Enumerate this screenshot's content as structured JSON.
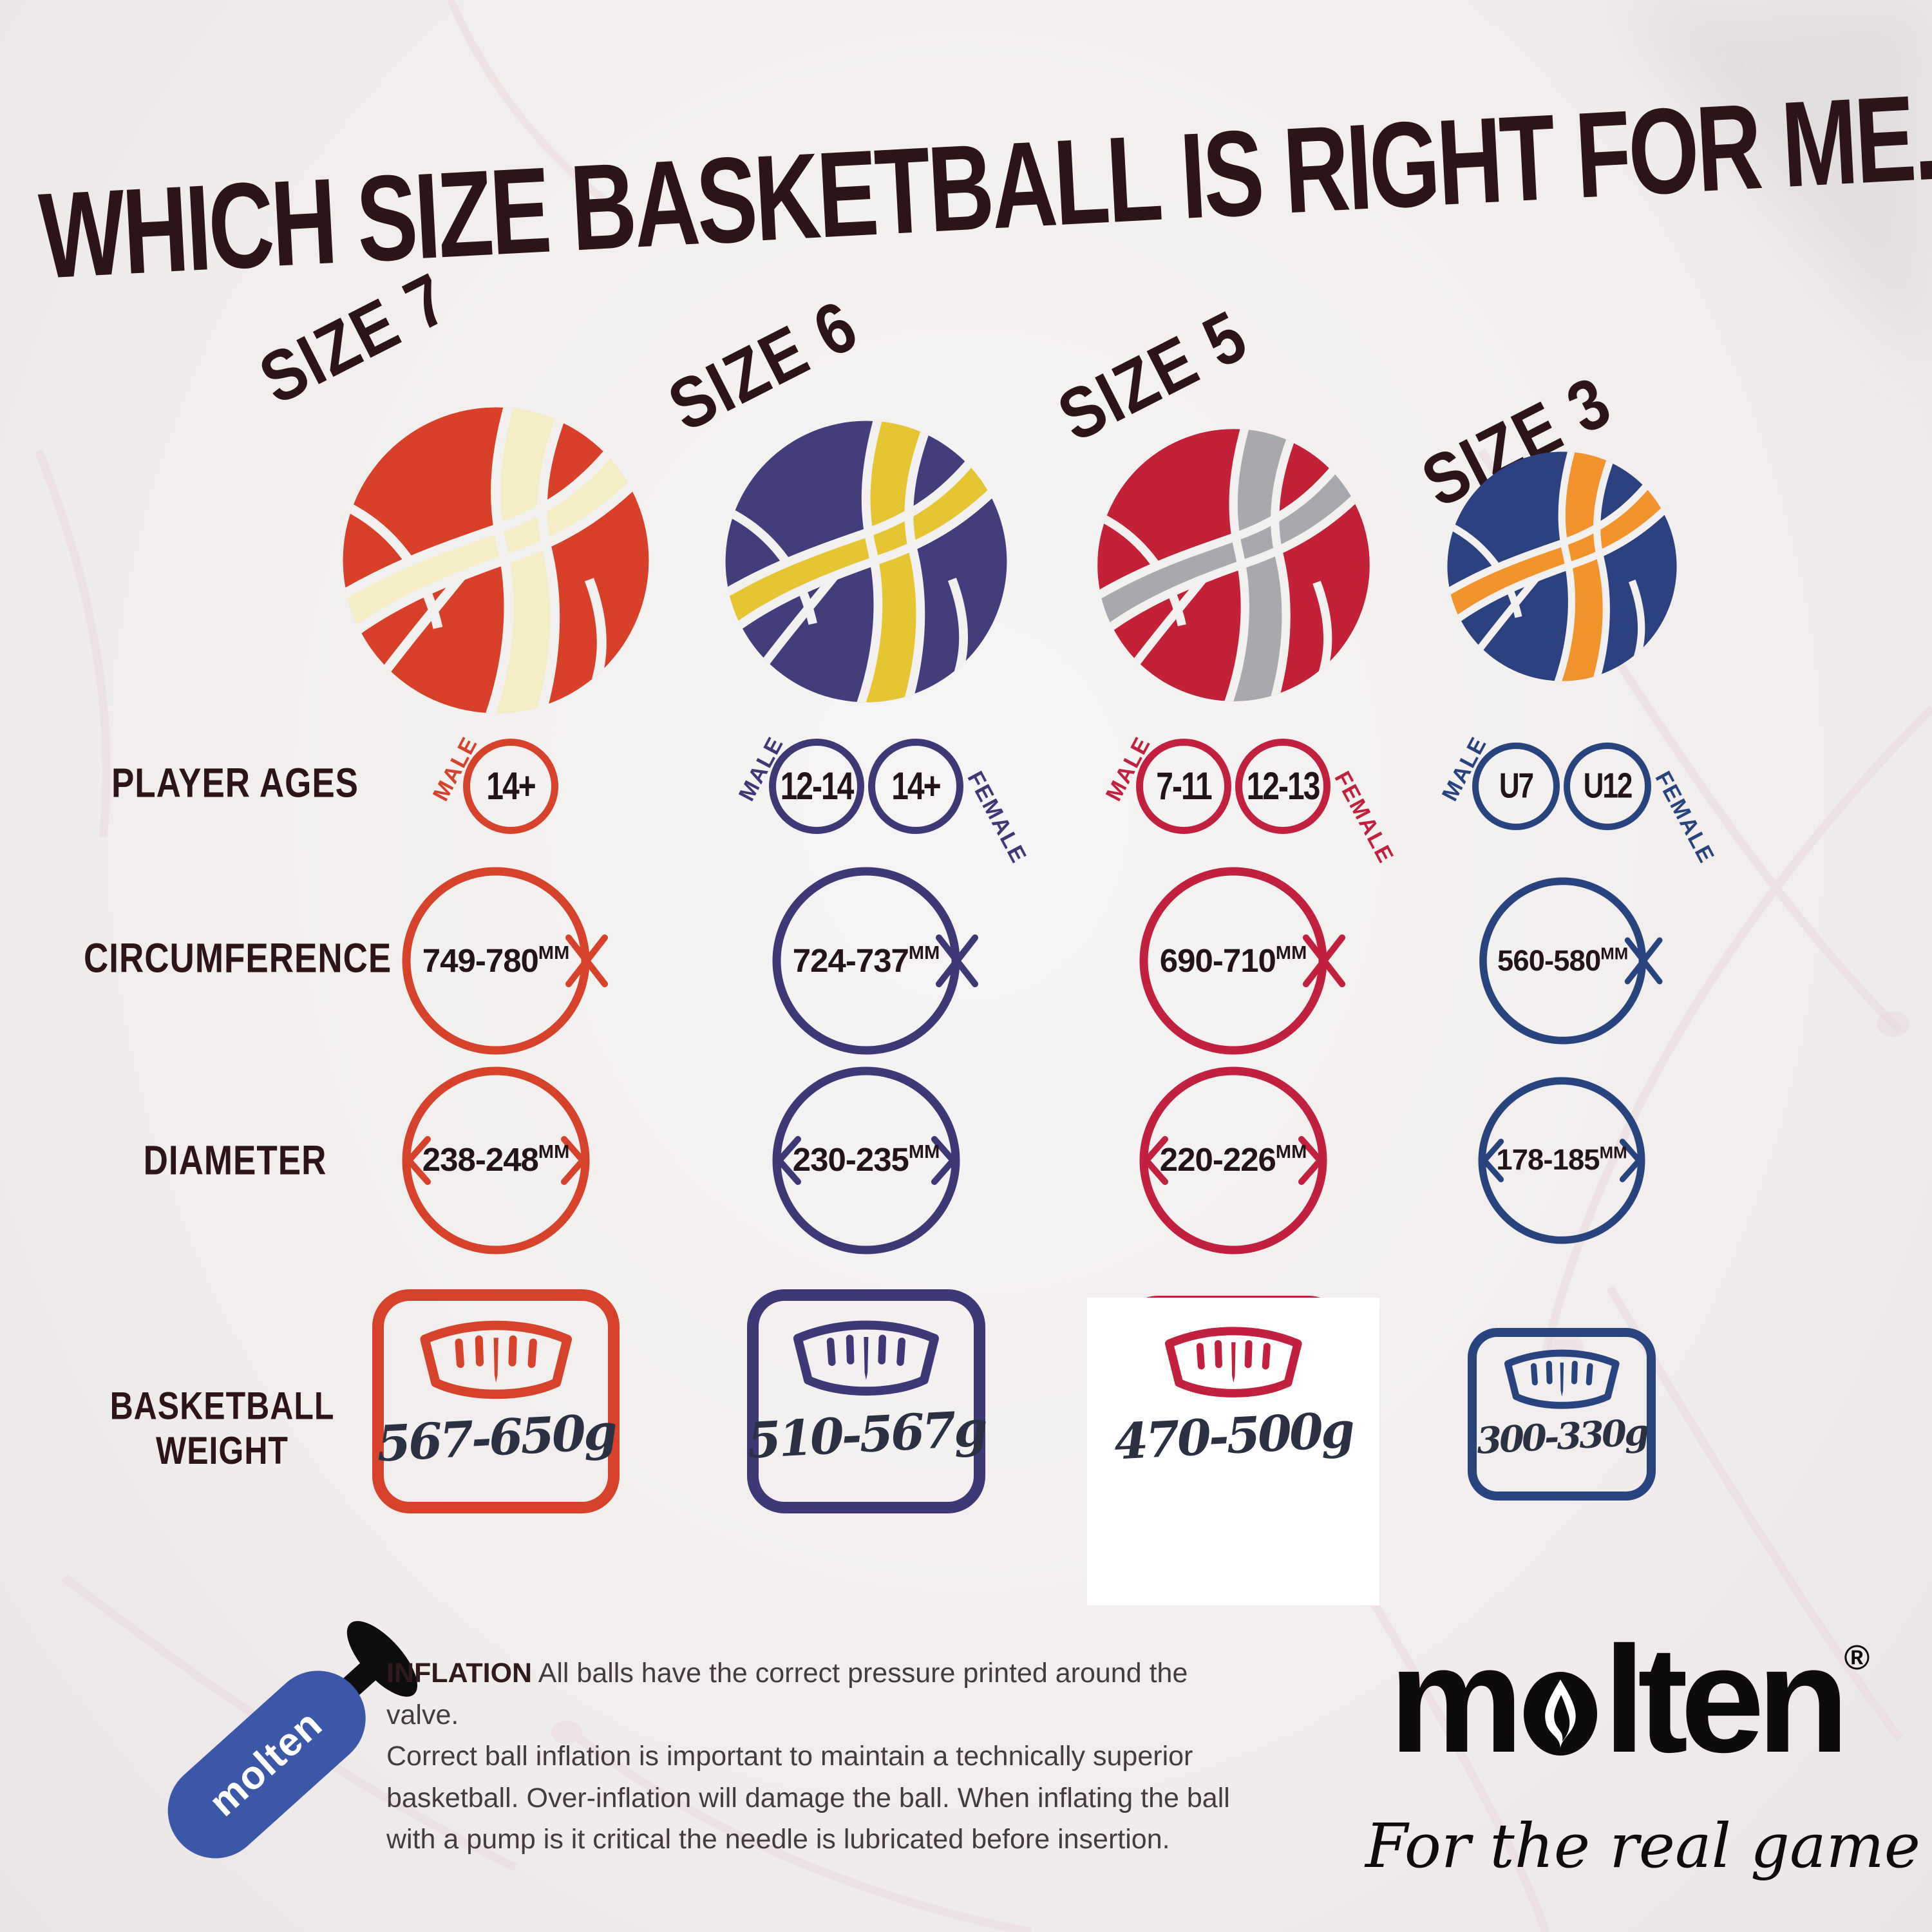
{
  "title": "WHICH SIZE BASKETBALL IS RIGHT FOR ME...",
  "row_labels": {
    "ages": "PLAYER AGES",
    "circumference": "CIRCUMFERENCE",
    "diameter": "DIAMETER",
    "weight": "BASKETBALL WEIGHT"
  },
  "units": {
    "mm": "MM"
  },
  "sizes": [
    {
      "label": "SIZE 7",
      "colors": {
        "base": "#d8402a",
        "accent": "#f6efc6",
        "ring": "#d6432a"
      },
      "ages": [
        {
          "gender": "MALE",
          "value": "14+"
        }
      ],
      "circumference": "749-780",
      "diameter": "238-248",
      "weight": "567-650g"
    },
    {
      "label": "SIZE 6",
      "colors": {
        "base": "#433d7b",
        "accent": "#e5c532",
        "ring": "#3f3877"
      },
      "ages": [
        {
          "gender": "MALE",
          "value": "12-14"
        },
        {
          "gender": "FEMALE",
          "value": "14+"
        }
      ],
      "circumference": "724-737",
      "diameter": "230-235",
      "weight": "510-567g"
    },
    {
      "label": "SIZE 5",
      "colors": {
        "base": "#c22138",
        "accent": "#a7a9ac",
        "ring": "#c1203f"
      },
      "ages": [
        {
          "gender": "MALE",
          "value": "7-11"
        },
        {
          "gender": "FEMALE",
          "value": "12-13"
        }
      ],
      "circumference": "690-710",
      "diameter": "220-226",
      "weight": "470-500g"
    },
    {
      "label": "SIZE 3",
      "colors": {
        "base": "#2c4180",
        "accent": "#f2932c",
        "ring": "#27447f"
      },
      "ages": [
        {
          "gender": "MALE",
          "value": "U7"
        },
        {
          "gender": "FEMALE",
          "value": "U12"
        }
      ],
      "circumference": "560-580",
      "diameter": "178-185",
      "weight": "300-330g"
    }
  ],
  "footer": {
    "inflation_heading": "INFLATION",
    "inflation_text": "All balls have the correct pressure printed around the valve.\nCorrect ball inflation is important to maintain a technically superior\nbasketball.  Over-inflation will damage the ball. When inflating the ball\nwith a pump is it critical the needle is lubricated before insertion.",
    "pump_brand": "molten",
    "logo_text": "molten",
    "logo_registered": "®",
    "tagline": "For the real game"
  }
}
